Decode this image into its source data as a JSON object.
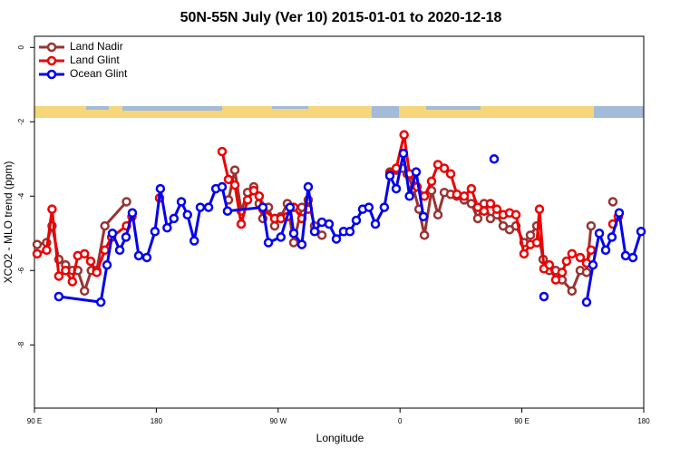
{
  "chart_data": {
    "type": "line",
    "title": "50N-55N July (Ver 10)   2015-01-01 to 2020-12-18",
    "x_label": "Longitude",
    "y_label": "XCO2 - MLO trend (ppm)",
    "xlim": [
      90,
      540
    ],
    "xticks": [
      {
        "value": 90,
        "label": "90 E"
      },
      180,
      {
        "value": 270,
        "label": "90 W"
      },
      {
        "value": 360,
        "label": "0"
      },
      {
        "value": 450,
        "label": "90 E"
      },
      {
        "value": 540,
        "label": "180"
      }
    ],
    "ylim": [
      -9.7,
      0.3
    ],
    "yticks": [
      0,
      -2,
      -4,
      -6,
      -8
    ],
    "legend": "top-left",
    "series": [
      {
        "name": "Land Nadir",
        "color": "#993333",
        "x": [
          92,
          99,
          103,
          108,
          113,
          118,
          122,
          127,
          132,
          136,
          142,
          158,
          null,
          233.3,
          238,
          242.7,
          247.4,
          252,
          256,
          258.7,
          262.8,
          267.4,
          272,
          276.8,
          281.5,
          287.5,
          292.2,
          296.9,
          302.3,
          null,
          352.5,
          357.2,
          361.9,
          365.3,
          369.9,
          374,
          378,
          383.3,
          388,
          392.7,
          397.4,
          402,
          407.4,
          412.7,
          417.4,
          422.1,
          426.8,
          431.5,
          436.2,
          440.9,
          445.6,
          451.6,
          456.3,
          461,
          465.7,
          470.3,
          475,
          479.7,
          487,
          493.1,
          497.8,
          501.1,
          null,
          517.2
        ],
        "values": [
          -5.3,
          -5.25,
          -4.8,
          -5.7,
          -5.85,
          -6.0,
          -6.0,
          -6.55,
          -6.0,
          -6.0,
          -4.8,
          -4.15,
          null,
          -4.1,
          -3.3,
          -4.4,
          -3.9,
          -3.75,
          -4.2,
          -4.6,
          -4.3,
          -4.8,
          -4.55,
          -4.2,
          -5.25,
          -4.3,
          -4.1,
          -4.8,
          -5.05,
          null,
          -3.35,
          -3.3,
          -3.25,
          -3.4,
          -3.8,
          -4.35,
          -5.05,
          -3.85,
          -4.5,
          -3.9,
          -3.95,
          -4.0,
          -4.1,
          -4.2,
          -4.6,
          -4.2,
          -4.6,
          -4.5,
          -4.8,
          -4.9,
          -4.8,
          -5.25,
          -5.05,
          -4.8,
          -5.7,
          -6.0,
          -6.0,
          -6.25,
          -6.55,
          -6.0,
          -6.05,
          -4.8,
          null,
          -4.15
        ]
      },
      {
        "name": "Land Glint",
        "color": "#ee0000",
        "x": [
          92,
          99,
          103,
          108,
          113,
          118,
          122,
          127,
          131.5,
          136,
          142,
          147,
          158,
          162,
          null,
          182.4,
          null,
          228.6,
          233.3,
          238,
          242.7,
          247.4,
          252,
          256,
          258.7,
          267.4,
          272,
          276.8,
          281.5,
          287.5,
          292.2,
          null,
          352.5,
          357.2,
          363,
          367,
          372.6,
          378,
          383.3,
          388,
          392.7,
          397.4,
          402,
          407.4,
          412.7,
          417.4,
          422.1,
          426.8,
          431.5,
          436.2,
          440.9,
          445.6,
          451.6,
          456.3,
          461,
          463,
          466.3,
          470.3,
          475,
          479.7,
          483,
          487,
          493.1,
          497.8,
          501.1,
          null,
          517.2,
          521.2
        ],
        "values": [
          -5.55,
          -5.45,
          -4.35,
          -6.15,
          -6.0,
          -6.3,
          -5.6,
          -5.55,
          -5.75,
          -6.05,
          -5.45,
          -5.1,
          -4.8,
          -4.55,
          null,
          -4.05,
          null,
          -2.8,
          -3.55,
          -3.7,
          -4.75,
          -4.1,
          -3.85,
          -4.0,
          -4.35,
          -4.6,
          -4.6,
          -4.55,
          -4.3,
          -4.6,
          -4.35,
          null,
          -3.4,
          -3.25,
          -2.35,
          -3.4,
          -3.75,
          -4.0,
          -3.6,
          -3.15,
          -3.25,
          -3.4,
          -3.95,
          -4.0,
          -3.8,
          -4.3,
          -4.4,
          -4.2,
          -4.35,
          -4.5,
          -4.45,
          -4.5,
          -5.55,
          -5.3,
          -5.25,
          -4.35,
          -5.95,
          -5.85,
          -6.25,
          -6.05,
          -5.75,
          -5.55,
          -5.65,
          -5.8,
          -5.45,
          null,
          -4.75,
          -4.55
        ]
      },
      {
        "name": "Ocean Glint",
        "color": "#0000ee",
        "x": [
          108,
          139,
          143.6,
          147.6,
          153,
          157.6,
          162.3,
          167,
          173,
          179,
          183,
          188,
          193,
          198.5,
          203,
          208,
          212.5,
          218.6,
          224,
          228.6,
          232.6,
          258.7,
          262.8,
          272,
          278.8,
          281.5,
          287.5,
          292.2,
          296.9,
          302.3,
          307.6,
          313,
          318.3,
          323,
          327.7,
          332.4,
          337,
          341.8,
          348.4,
          352.5,
          357.2,
          362.5,
          367,
          371.9,
          377.3,
          null,
          429.5,
          null,
          466.3,
          null,
          497.8,
          502.5,
          507.2,
          511.9,
          516.5,
          521.9,
          526.6,
          532,
          538
        ],
        "values": [
          -6.7,
          -6.85,
          -5.85,
          -5.0,
          -5.45,
          -5.1,
          -4.45,
          -5.6,
          -5.65,
          -4.95,
          -3.8,
          -4.85,
          -4.6,
          -4.15,
          -4.5,
          -5.2,
          -4.3,
          -4.3,
          -3.8,
          -3.75,
          -4.4,
          -4.3,
          -5.25,
          -5.1,
          -4.3,
          -5.0,
          -5.3,
          -3.75,
          -4.95,
          -4.7,
          -4.75,
          -5.15,
          -4.95,
          -4.95,
          -4.65,
          -4.35,
          -4.3,
          -4.75,
          -4.3,
          -3.45,
          -3.8,
          -2.85,
          -4.0,
          -3.35,
          -4.55,
          null,
          -3.0,
          null,
          -6.7,
          null,
          -6.85,
          -5.85,
          -5.0,
          -5.45,
          -5.1,
          -4.45,
          -5.6,
          -5.65,
          -4.95
        ]
      }
    ]
  }
}
